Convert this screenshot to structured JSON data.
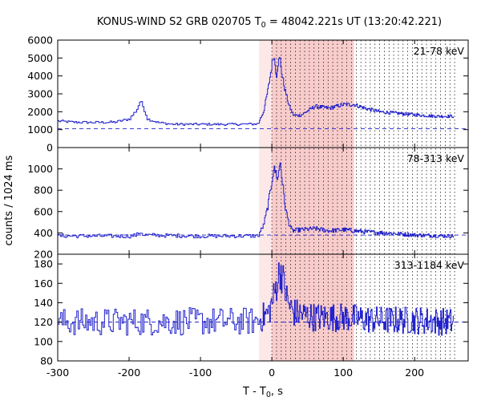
{
  "chart_data": {
    "type": "line",
    "title": {
      "prefix": "KONUS-WIND S2 GRB 020705 T",
      "subscript": "0",
      "suffix": " = 48042.221s UT (13:20:42.221)"
    },
    "xlabel": {
      "prefix": "T - T",
      "subscript": "0",
      "suffix": ", s"
    },
    "ylabel": "counts / 1024 ms",
    "xlim": [
      -300,
      275
    ],
    "x_ticks": [
      -300,
      -200,
      -100,
      0,
      100,
      200
    ],
    "highlight": {
      "light_region": [
        -18,
        0
      ],
      "dark_region": [
        0,
        115
      ],
      "dotted_lines_start": 0,
      "dotted_lines_end": 256,
      "dotted_lines_count": 40
    },
    "colors": {
      "series": "#2222cc",
      "light_shade": "#fde8e8",
      "dark_shade": "#f9cccc",
      "dotted": "#000000"
    },
    "panels": [
      {
        "label": "21-78 keV",
        "ylim": [
          0,
          6000
        ],
        "yticks": [
          0,
          1000,
          2000,
          3000,
          4000,
          5000,
          6000
        ],
        "background": 1050,
        "data_end": 255,
        "keypoints": [
          [
            -300,
            1480
          ],
          [
            -280,
            1420
          ],
          [
            -250,
            1400
          ],
          [
            -220,
            1420
          ],
          [
            -200,
            1600
          ],
          [
            -190,
            2100
          ],
          [
            -185,
            2600
          ],
          [
            -180,
            2200
          ],
          [
            -175,
            1600
          ],
          [
            -160,
            1400
          ],
          [
            -140,
            1300
          ],
          [
            -100,
            1300
          ],
          [
            -50,
            1300
          ],
          [
            -20,
            1320
          ],
          [
            -12,
            2000
          ],
          [
            -6,
            3200
          ],
          [
            -2,
            4200
          ],
          [
            2,
            5200
          ],
          [
            4,
            4700
          ],
          [
            6,
            4000
          ],
          [
            8,
            4700
          ],
          [
            11,
            5000
          ],
          [
            14,
            4000
          ],
          [
            18,
            3200
          ],
          [
            24,
            2300
          ],
          [
            30,
            1800
          ],
          [
            40,
            1800
          ],
          [
            60,
            2300
          ],
          [
            80,
            2200
          ],
          [
            100,
            2400
          ],
          [
            115,
            2400
          ],
          [
            130,
            2200
          ],
          [
            150,
            2000
          ],
          [
            180,
            1900
          ],
          [
            210,
            1800
          ],
          [
            230,
            1750
          ],
          [
            255,
            1750
          ]
        ],
        "noise": 0.035
      },
      {
        "label": "78-313 keV",
        "ylim": [
          200,
          1200
        ],
        "yticks": [
          200,
          400,
          600,
          800,
          1000
        ],
        "background": 380,
        "data_end": 255,
        "keypoints": [
          [
            -300,
            372
          ],
          [
            -200,
            370
          ],
          [
            -190,
            380
          ],
          [
            -185,
            410
          ],
          [
            -180,
            380
          ],
          [
            -100,
            370
          ],
          [
            -20,
            372
          ],
          [
            -12,
            470
          ],
          [
            -6,
            650
          ],
          [
            -2,
            820
          ],
          [
            2,
            1000
          ],
          [
            5,
            970
          ],
          [
            8,
            900
          ],
          [
            11,
            1080
          ],
          [
            14,
            900
          ],
          [
            18,
            650
          ],
          [
            23,
            500
          ],
          [
            28,
            420
          ],
          [
            40,
            430
          ],
          [
            60,
            440
          ],
          [
            80,
            420
          ],
          [
            100,
            430
          ],
          [
            130,
            410
          ],
          [
            160,
            400
          ],
          [
            200,
            380
          ],
          [
            255,
            370
          ]
        ],
        "noise": 0.035
      },
      {
        "label": "313-1184 keV",
        "ylim": [
          80,
          190
        ],
        "yticks": [
          80,
          100,
          120,
          140,
          160,
          180
        ],
        "background": 120,
        "data_end": 255,
        "keypoints": [
          [
            -300,
            120
          ],
          [
            -20,
            121
          ],
          [
            -5,
            130
          ],
          [
            2,
            145
          ],
          [
            8,
            165
          ],
          [
            12,
            175
          ],
          [
            16,
            160
          ],
          [
            22,
            140
          ],
          [
            30,
            130
          ],
          [
            60,
            125
          ],
          [
            100,
            125
          ],
          [
            150,
            122
          ],
          [
            200,
            122
          ],
          [
            255,
            120
          ]
        ],
        "noise": 0.085
      }
    ]
  }
}
